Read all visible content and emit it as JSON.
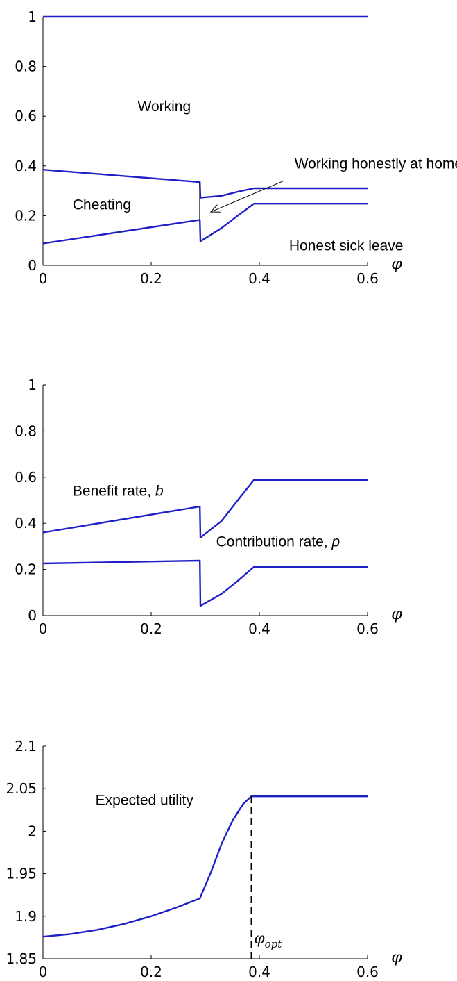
{
  "chart_data": [
    {
      "type": "line",
      "xlabel": "φ",
      "xlim": [
        0,
        0.6
      ],
      "ylim": [
        0,
        1
      ],
      "xticks": [
        "0",
        "0.2",
        "0.4",
        "0.6"
      ],
      "yticks": [
        "0",
        "0.2",
        "0.4",
        "0.6",
        "0.8",
        "1"
      ],
      "series": [
        {
          "color": "#1f1fc8",
          "x": [
            0,
            0.6
          ],
          "y": [
            1,
            1
          ]
        },
        {
          "color": "#1f1fc8",
          "x": [
            0,
            0.29,
            0.291,
            0.33,
            0.36,
            0.39,
            0.6
          ],
          "y": [
            0.385,
            0.335,
            0.272,
            0.28,
            0.296,
            0.31,
            0.31
          ]
        },
        {
          "color": "#1f1fc8",
          "x": [
            0,
            0.29,
            0.291,
            0.33,
            0.36,
            0.39,
            0.6
          ],
          "y": [
            0.088,
            0.183,
            0.097,
            0.15,
            0.2,
            0.248,
            0.248
          ]
        },
        {
          "color": "#000000",
          "x": [
            0.29,
            0.29
          ],
          "y": [
            0.183,
            0.335
          ]
        }
      ],
      "annotations": [
        {
          "text": "Working",
          "x": 0.175,
          "y": 0.62
        },
        {
          "text": "Cheating",
          "x": 0.055,
          "y": 0.225
        },
        {
          "text": "Working honestly at home",
          "x": 0.465,
          "y": 0.39
        },
        {
          "text": "Honest sick leave",
          "x": 0.455,
          "y": 0.06
        }
      ],
      "arrow": {
        "from": {
          "x": 0.445,
          "y": 0.34
        },
        "to": {
          "x": 0.31,
          "y": 0.215
        }
      }
    },
    {
      "type": "line",
      "xlabel": "φ",
      "xlim": [
        0,
        0.6
      ],
      "ylim": [
        0,
        1
      ],
      "xticks": [
        "0",
        "0.2",
        "0.4",
        "0.6"
      ],
      "yticks": [
        "0",
        "0.2",
        "0.4",
        "0.6",
        "0.8",
        "1"
      ],
      "series": [
        {
          "color": "#1f1fc8",
          "x": [
            0,
            0.29,
            0.291,
            0.33,
            0.36,
            0.39,
            0.6
          ],
          "y": [
            0.36,
            0.473,
            0.338,
            0.41,
            0.5,
            0.588,
            0.588
          ]
        },
        {
          "color": "#1f1fc8",
          "x": [
            0,
            0.29,
            0.291,
            0.33,
            0.36,
            0.39,
            0.6
          ],
          "y": [
            0.226,
            0.238,
            0.042,
            0.094,
            0.15,
            0.211,
            0.211
          ]
        }
      ],
      "annotations": [
        {
          "text": "Benefit rate, ",
          "italic": "b",
          "x": 0.055,
          "y": 0.52
        },
        {
          "text": "Contribution rate, ",
          "italic": "p",
          "x": 0.32,
          "y": 0.3
        }
      ]
    },
    {
      "type": "line",
      "xlabel": "φ",
      "xlim": [
        0,
        0.6
      ],
      "ylim": [
        1.85,
        2.1
      ],
      "xticks": [
        "0",
        "0.2",
        "0.4",
        "0.6"
      ],
      "yticks": [
        "1.85",
        "1.9",
        "1.95",
        "2",
        "2.05",
        "2.1"
      ],
      "series": [
        {
          "color": "#1f1fc8",
          "x": [
            0,
            0.05,
            0.1,
            0.15,
            0.2,
            0.25,
            0.29,
            0.31,
            0.33,
            0.35,
            0.37,
            0.385,
            0.6
          ],
          "y": [
            1.876,
            1.879,
            1.884,
            1.891,
            1.9,
            1.911,
            1.921,
            1.951,
            1.985,
            2.012,
            2.032,
            2.041,
            2.041
          ]
        },
        {
          "color": "#000000",
          "dashed": true,
          "x": [
            0.385,
            0.385
          ],
          "y": [
            1.85,
            2.041
          ]
        }
      ],
      "annotations": [
        {
          "text": "Expected utility",
          "x": 0.097,
          "y": 2.031
        }
      ],
      "opt_label": {
        "base": "φ",
        "sub": "opt",
        "x": 0.39,
        "y": 1.868
      }
    }
  ]
}
